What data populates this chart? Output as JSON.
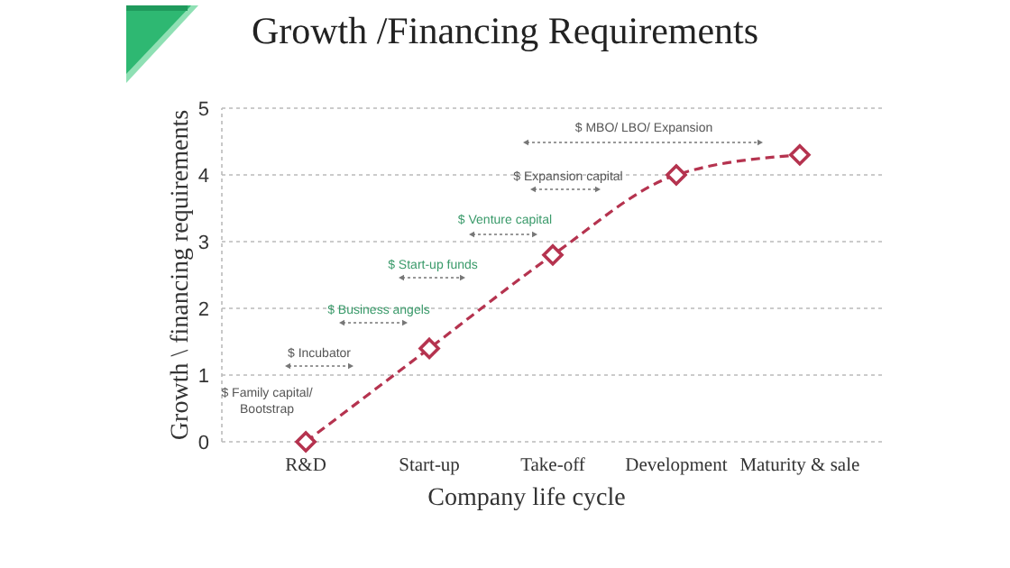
{
  "chart_data": {
    "type": "line",
    "title": "Growth /Financing Requirements",
    "xlabel": "Company life cycle",
    "ylabel": "Growth \\ financing requirements",
    "categories": [
      "R&D",
      "Start-up",
      "Take-off",
      "Development",
      "Maturity & sale"
    ],
    "series": [
      {
        "color": "#b5334f",
        "values": [
          0,
          1.4,
          2.8,
          4.0,
          4.3
        ]
      }
    ],
    "ylim": [
      0,
      5
    ],
    "yticks": [
      0,
      1,
      2,
      3,
      4,
      5
    ],
    "grid": "y",
    "marker": "diamond",
    "line_style": "dashed",
    "annotations": [
      "$ Family capital/ Bootstrap",
      "$ Incubator",
      "$ Business angels",
      "$ Start-up funds",
      "$ Venture capital",
      "$ Expansion capital",
      "$ MBO/ LBO/ Expansion"
    ]
  }
}
